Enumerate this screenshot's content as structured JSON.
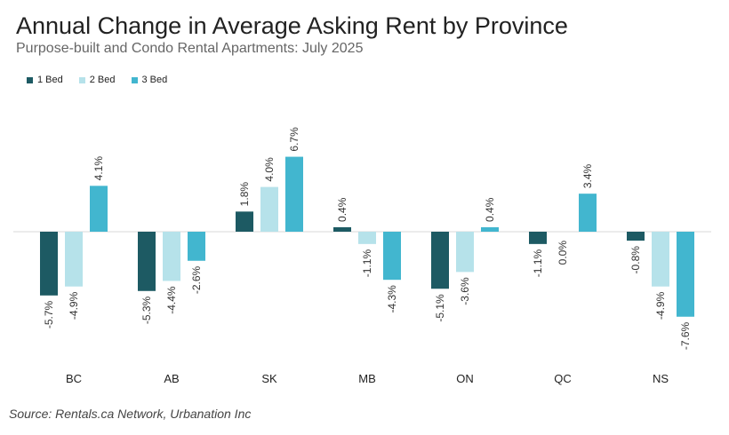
{
  "title": "Annual Change in Average Asking Rent by Province",
  "subtitle": "Purpose-built and Condo Rental Apartments: July 2025",
  "source": "Source: Rentals.ca Network, Urbanation Inc",
  "legend": [
    {
      "label": "1 Bed",
      "color": "#1d5a63"
    },
    {
      "label": "2 Bed",
      "color": "#b6e2ea"
    },
    {
      "label": "3 Bed",
      "color": "#42b6cf"
    }
  ],
  "chart_data": {
    "type": "bar",
    "categories": [
      "BC",
      "AB",
      "SK",
      "MB",
      "ON",
      "QC",
      "NS"
    ],
    "series": [
      {
        "name": "1 Bed",
        "color": "#1d5a63",
        "values": [
          -5.7,
          -5.3,
          1.8,
          0.4,
          -5.1,
          -1.1,
          -0.8
        ],
        "labels": [
          "-5.7%",
          "-5.3%",
          "1.8%",
          "0.4%",
          "-5.1%",
          "-1.1%",
          "-0.8%"
        ]
      },
      {
        "name": "2 Bed",
        "color": "#b6e2ea",
        "values": [
          -4.9,
          -4.4,
          4.0,
          -1.1,
          -3.6,
          0.0,
          -4.9
        ],
        "labels": [
          "-4.9%",
          "-4.4%",
          "4.0%",
          "-1.1%",
          "-3.6%",
          "0.0%",
          "-4.9%"
        ]
      },
      {
        "name": "3 Bed",
        "color": "#42b6cf",
        "values": [
          4.1,
          -2.6,
          6.7,
          -4.3,
          0.4,
          3.4,
          -7.6
        ],
        "labels": [
          "4.1%",
          "-2.6%",
          "6.7%",
          "-4.3%",
          "0.4%",
          "3.4%",
          "-7.6%"
        ]
      }
    ],
    "ylim": [
      -8,
      7
    ],
    "grid": false,
    "legend_position": "top-left"
  }
}
